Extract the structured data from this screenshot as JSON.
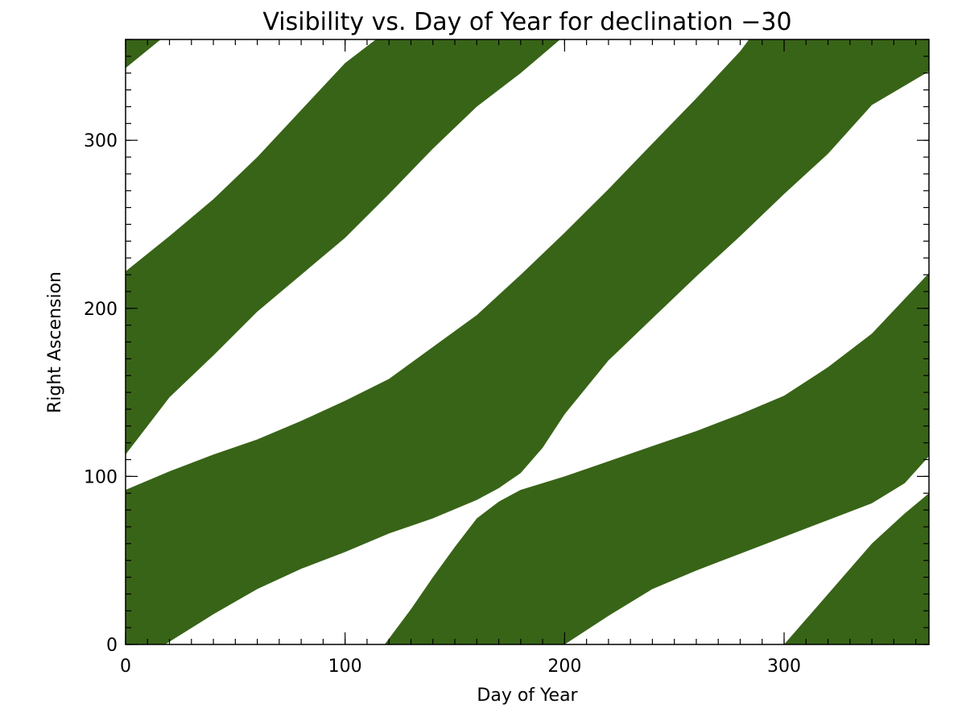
{
  "chart_data": {
    "type": "area",
    "title": "Visibility vs. Day of Year for declination −30",
    "xlabel": "Day of Year",
    "ylabel": "Right Ascension",
    "xlim": [
      0,
      366
    ],
    "ylim": [
      0,
      360
    ],
    "xticks": [
      {
        "value": 0,
        "label": "0"
      },
      {
        "value": 100,
        "label": "100"
      },
      {
        "value": 200,
        "label": "200"
      },
      {
        "value": 300,
        "label": "300"
      }
    ],
    "yticks": [
      {
        "value": 0,
        "label": "0"
      },
      {
        "value": 100,
        "label": "100"
      },
      {
        "value": 200,
        "label": "200"
      },
      {
        "value": 300,
        "label": "300"
      }
    ],
    "x_minor_step": 10,
    "y_minor_step": 10,
    "fill_color": "#386417",
    "grid": false,
    "legend": "none",
    "bands": [
      {
        "lower": [
          [
            0,
            343
          ],
          [
            16,
            360
          ]
        ],
        "upper": [
          [
            0,
            360
          ],
          [
            16,
            360
          ]
        ]
      },
      {
        "lower": [
          [
            0,
            113
          ],
          [
            20,
            147
          ],
          [
            40,
            172
          ],
          [
            60,
            198
          ],
          [
            80,
            220
          ],
          [
            100,
            242
          ],
          [
            120,
            268
          ],
          [
            140,
            295
          ],
          [
            160,
            320
          ],
          [
            180,
            340
          ],
          [
            198,
            360
          ]
        ],
        "upper": [
          [
            0,
            222
          ],
          [
            20,
            243
          ],
          [
            40,
            265
          ],
          [
            60,
            290
          ],
          [
            80,
            318
          ],
          [
            100,
            346
          ],
          [
            114,
            360
          ],
          [
            198,
            360
          ]
        ]
      },
      {
        "lower": [
          [
            0,
            0
          ],
          [
            18,
            0
          ],
          [
            40,
            18
          ],
          [
            60,
            33
          ],
          [
            80,
            45
          ],
          [
            100,
            55
          ],
          [
            120,
            66
          ],
          [
            140,
            75
          ],
          [
            160,
            86
          ],
          [
            170,
            93
          ],
          [
            180,
            102
          ],
          [
            190,
            117
          ],
          [
            200,
            137
          ],
          [
            220,
            169
          ],
          [
            240,
            194
          ],
          [
            260,
            219
          ],
          [
            280,
            243
          ],
          [
            300,
            268
          ],
          [
            320,
            292
          ],
          [
            340,
            321
          ],
          [
            366,
            341
          ]
        ],
        "upper": [
          [
            0,
            92
          ],
          [
            20,
            103
          ],
          [
            40,
            113
          ],
          [
            60,
            122
          ],
          [
            80,
            133
          ],
          [
            100,
            145
          ],
          [
            120,
            158
          ],
          [
            140,
            177
          ],
          [
            160,
            196
          ],
          [
            180,
            220
          ],
          [
            200,
            245
          ],
          [
            220,
            271
          ],
          [
            240,
            298
          ],
          [
            260,
            325
          ],
          [
            280,
            353
          ],
          [
            284,
            360
          ],
          [
            366,
            360
          ]
        ]
      },
      {
        "lower": [
          [
            118,
            0
          ],
          [
            130,
            21
          ],
          [
            140,
            40
          ],
          [
            150,
            58
          ],
          [
            160,
            75
          ],
          [
            170,
            85
          ],
          [
            180,
            92
          ],
          [
            200,
            100
          ],
          [
            220,
            109
          ],
          [
            240,
            118
          ],
          [
            260,
            127
          ],
          [
            280,
            137
          ],
          [
            300,
            148
          ],
          [
            320,
            165
          ],
          [
            340,
            185
          ],
          [
            366,
            221
          ]
        ],
        "upper": [
          [
            118,
            0
          ],
          [
            200,
            0
          ],
          [
            220,
            17
          ],
          [
            240,
            33
          ],
          [
            260,
            44
          ],
          [
            280,
            54
          ],
          [
            300,
            64
          ],
          [
            320,
            74
          ],
          [
            340,
            84
          ],
          [
            355,
            96
          ],
          [
            366,
            112
          ]
        ]
      },
      {
        "lower": [
          [
            300,
            0
          ],
          [
            320,
            30
          ],
          [
            340,
            60
          ],
          [
            355,
            78
          ],
          [
            366,
            90
          ]
        ],
        "upper": [
          [
            300,
            0
          ],
          [
            366,
            0
          ]
        ]
      }
    ]
  }
}
